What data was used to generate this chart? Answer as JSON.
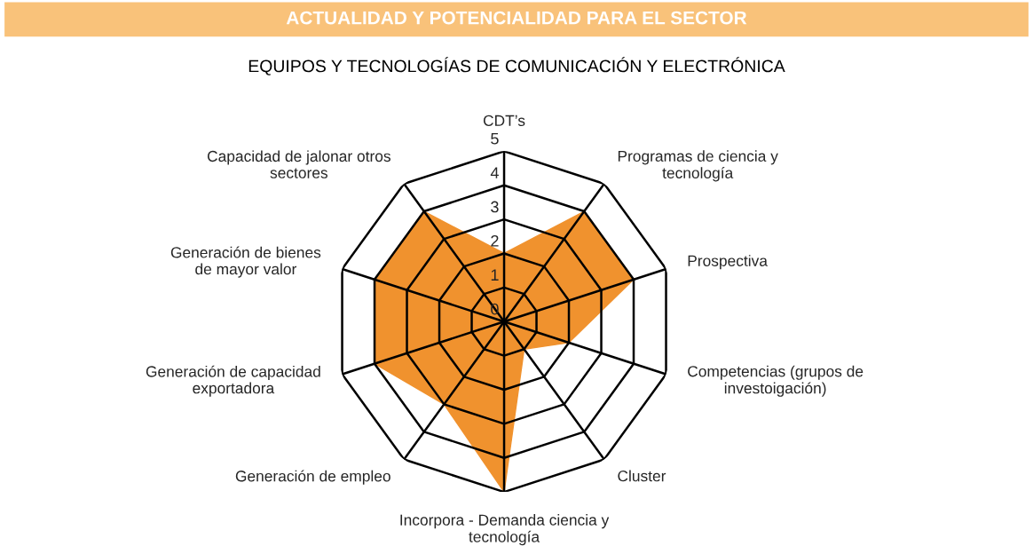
{
  "chart_data": {
    "type": "radar",
    "title": "ACTUALIDAD Y POTENCIALIDAD PARA EL SECTOR",
    "subtitle": "EQUIPOS Y TECNOLOGÍAS DE COMUNICACIÓN Y ELECTRÓNICA",
    "categories": [
      "CDT’s",
      "Programas de ciencia y\ntecnología",
      "Prospectiva",
      "Competencias (grupos de\ninvestoigación)",
      "Cluster",
      "Incorpora - Demanda ciencia y\ntecnología",
      "Generación de empleo",
      "Generación de capacidad\nexportadora",
      "Generación de bienes\nde mayor valor",
      "Capacidad de jalonar otros\nsectores"
    ],
    "series": [
      {
        "color": "#f0922e",
        "values": [
          2,
          4,
          4,
          2,
          1,
          5,
          3,
          4,
          4,
          4
        ]
      }
    ],
    "ylim": [
      0,
      5
    ],
    "yticks": [
      0,
      1,
      2,
      3,
      4,
      5
    ],
    "grid": true,
    "legend": false
  }
}
